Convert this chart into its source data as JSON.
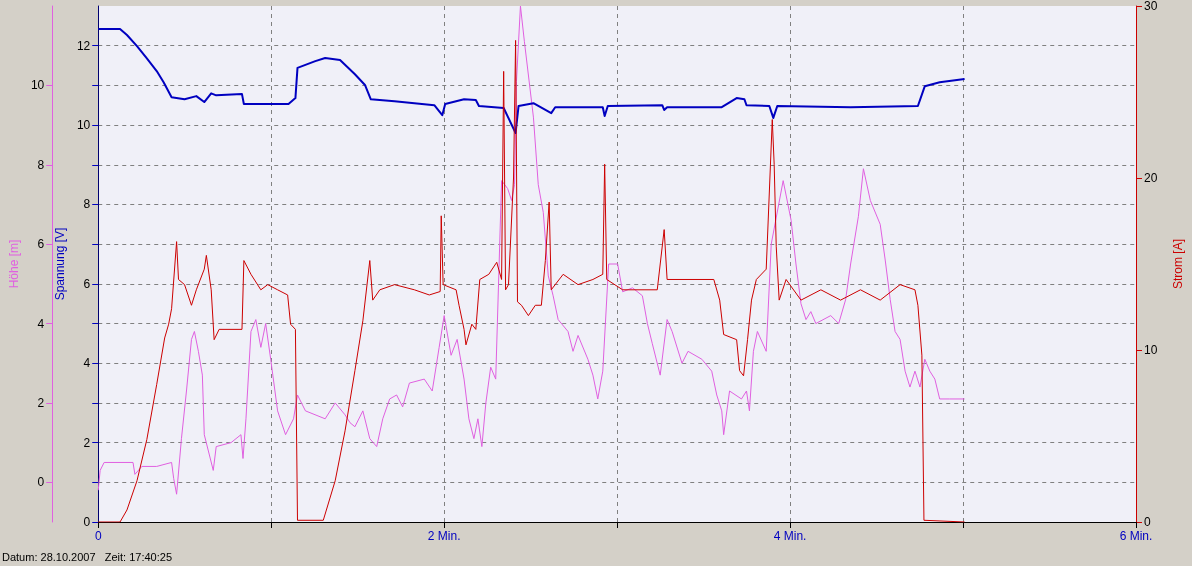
{
  "chart_data": {
    "type": "line",
    "xticks": [
      0,
      {
        "value": 1,
        "label": null
      },
      {
        "value": 2,
        "label": "2 Min."
      },
      {
        "value": 3,
        "label": null
      },
      {
        "value": 4,
        "label": "4 Min."
      },
      {
        "value": 5,
        "label": null
      },
      {
        "value": 6,
        "label": "6 Min."
      }
    ],
    "xlim": [
      0,
      6
    ],
    "ylabel": "Spannung [V]",
    "ylim": [
      0,
      13
    ],
    "yticks": [
      0,
      {
        "value": 1,
        "label": null
      },
      2,
      {
        "value": 3,
        "label": null
      },
      4,
      {
        "value": 5,
        "label": null
      },
      6,
      {
        "value": 7,
        "label": null
      },
      8,
      {
        "value": 9,
        "label": null
      },
      10,
      {
        "value": 11,
        "label": null
      },
      12
    ],
    "y2label": "Strom [A]",
    "y2lim": [
      0,
      30
    ],
    "y2ticks": [
      0,
      10,
      20,
      30
    ],
    "y3label": "Höhe [m]",
    "y3lim": [
      -1,
      12
    ],
    "y3ticks": [
      0,
      2,
      4,
      6,
      8,
      10
    ],
    "grid": true,
    "annotations": [
      "Datum: 28.10.2007   Zeit: 17:40:25"
    ],
    "series": [
      {
        "color": "#e060e0",
        "axis": "y3",
        "x": [
          0,
          0.011,
          0.034,
          0.201,
          0.212,
          0.252,
          0.338,
          0.424,
          0.436,
          0.453,
          0.481,
          0.51,
          0.539,
          0.556,
          0.579,
          0.602,
          0.613,
          0.665,
          0.682,
          0.768,
          0.825,
          0.837,
          0.854,
          0.883,
          0.911,
          0.94,
          0.968,
          0.997,
          1.037,
          1.083,
          1.129,
          1.152,
          1.198,
          1.312,
          1.37,
          1.427,
          1.456,
          1.484,
          1.53,
          1.57,
          1.61,
          1.645,
          1.685,
          1.725,
          1.76,
          1.799,
          1.885,
          1.931,
          1.971,
          2.0,
          2.04,
          2.075,
          2.115,
          2.143,
          2.172,
          2.195,
          2.218,
          2.241,
          2.269,
          2.298,
          2.332,
          2.367,
          2.39,
          2.407,
          2.418,
          2.441,
          2.464,
          2.516,
          2.544,
          2.573,
          2.602,
          2.63,
          2.659,
          2.716,
          2.745,
          2.774,
          2.831,
          2.86,
          2.888,
          2.917,
          2.951,
          3.003,
          3.032,
          3.089,
          3.146,
          3.175,
          3.203,
          3.249,
          3.289,
          3.318,
          3.375,
          3.41,
          3.49,
          3.547,
          3.576,
          3.605,
          3.616,
          3.65,
          3.719,
          3.748,
          3.765,
          3.788,
          3.811,
          3.862,
          3.891,
          3.96,
          4.006,
          4.034,
          4.063,
          4.092,
          4.12,
          4.149,
          4.235,
          4.281,
          4.321,
          4.35,
          4.395,
          4.424,
          4.464,
          4.521,
          4.55,
          4.579,
          4.607,
          4.636,
          4.665,
          4.693,
          4.722,
          4.751,
          4.779,
          4.808,
          4.837,
          4.865,
          4.923,
          5.009
        ],
        "values": [
          -0.2,
          0.3,
          0.5,
          0.5,
          0.2,
          0.4,
          0.4,
          0.5,
          0.1,
          -0.3,
          1.1,
          2.3,
          3.6,
          3.8,
          3.3,
          2.7,
          1.2,
          0.3,
          0.9,
          1.0,
          1.2,
          0.6,
          1.6,
          3.8,
          4.1,
          3.4,
          4.0,
          3.1,
          1.8,
          1.2,
          1.6,
          2.2,
          1.8,
          1.6,
          2.0,
          1.7,
          1.5,
          1.4,
          1.8,
          1.1,
          0.9,
          1.6,
          2.1,
          2.2,
          1.9,
          2.5,
          2.6,
          2.3,
          3.4,
          4.2,
          3.2,
          3.6,
          2.6,
          1.6,
          1.1,
          1.6,
          0.9,
          2.0,
          2.9,
          2.6,
          7.6,
          7.4,
          7.1,
          7.5,
          10.1,
          12.0,
          11.1,
          9.2,
          7.5,
          6.8,
          5.2,
          4.7,
          4.1,
          3.8,
          3.3,
          3.7,
          3.1,
          2.7,
          2.1,
          2.8,
          5.5,
          5.5,
          4.8,
          4.9,
          4.7,
          4.0,
          3.5,
          2.7,
          4.1,
          3.8,
          3.0,
          3.3,
          3.1,
          2.8,
          2.2,
          1.8,
          1.2,
          2.3,
          2.1,
          2.3,
          1.8,
          3.3,
          3.8,
          3.3,
          6.0,
          7.6,
          6.6,
          5.5,
          4.5,
          4.1,
          4.3,
          4.0,
          4.2,
          4.0,
          4.6,
          5.5,
          6.7,
          7.9,
          7.1,
          6.5,
          5.6,
          4.6,
          3.8,
          3.6,
          2.8,
          2.4,
          2.8,
          2.4,
          3.1,
          2.8,
          2.6,
          2.1,
          2.1,
          2.1
        ]
      },
      {
        "color": "#0000c0",
        "axis": "y",
        "x": [
          0,
          0.126,
          0.166,
          0.224,
          0.281,
          0.338,
          0.378,
          0.424,
          0.499,
          0.567,
          0.613,
          0.653,
          0.682,
          0.831,
          0.842,
          1.003,
          1.1,
          1.14,
          1.152,
          1.255,
          1.312,
          1.398,
          1.484,
          1.542,
          1.576,
          1.713,
          1.943,
          1.989,
          2.006,
          2.115,
          2.183,
          2.201,
          2.344,
          2.413,
          2.43,
          2.516,
          2.619,
          2.642,
          2.917,
          2.928,
          2.946,
          3.261,
          3.272,
          3.289,
          3.605,
          3.691,
          3.736,
          3.748,
          3.88,
          3.903,
          3.926,
          4.35,
          4.739,
          4.779,
          4.865,
          5.009
        ],
        "values": [
          12.42,
          12.42,
          12.27,
          11.99,
          11.68,
          11.36,
          11.08,
          10.7,
          10.65,
          10.73,
          10.58,
          10.8,
          10.75,
          10.78,
          10.53,
          10.53,
          10.53,
          10.68,
          11.44,
          11.61,
          11.69,
          11.64,
          11.28,
          11.01,
          10.65,
          10.6,
          10.5,
          10.25,
          10.53,
          10.65,
          10.63,
          10.48,
          10.43,
          9.8,
          10.48,
          10.55,
          10.3,
          10.45,
          10.45,
          10.23,
          10.48,
          10.5,
          10.38,
          10.45,
          10.45,
          10.68,
          10.65,
          10.5,
          10.48,
          10.18,
          10.48,
          10.45,
          10.48,
          10.98,
          11.08,
          11.16
        ]
      },
      {
        "color": "#cc0000",
        "axis": "y2",
        "x": [
          0,
          0.126,
          0.166,
          0.224,
          0.281,
          0.338,
          0.384,
          0.407,
          0.424,
          0.453,
          0.464,
          0.499,
          0.539,
          0.567,
          0.613,
          0.625,
          0.653,
          0.67,
          0.699,
          0.831,
          0.842,
          0.883,
          0.94,
          0.98,
          1.037,
          1.095,
          1.112,
          1.14,
          1.152,
          1.301,
          1.37,
          1.427,
          1.484,
          1.53,
          1.57,
          1.587,
          1.628,
          1.713,
          1.828,
          1.914,
          1.977,
          1.983,
          1.994,
          2.069,
          2.086,
          2.115,
          2.126,
          2.16,
          2.183,
          2.206,
          2.258,
          2.304,
          2.332,
          2.344,
          2.355,
          2.372,
          2.401,
          2.413,
          2.424,
          2.447,
          2.487,
          2.527,
          2.562,
          2.585,
          2.607,
          2.619,
          2.688,
          2.774,
          2.86,
          2.917,
          2.928,
          2.94,
          3.032,
          3.232,
          3.272,
          3.289,
          3.559,
          3.593,
          3.616,
          3.691,
          3.708,
          3.731,
          3.754,
          3.777,
          3.805,
          3.862,
          3.897,
          3.908,
          3.92,
          3.937,
          3.977,
          4.063,
          4.178,
          4.292,
          4.407,
          4.521,
          4.636,
          4.722,
          4.739,
          4.762,
          4.774,
          5.009
        ],
        "values": [
          0,
          0,
          0.7,
          2.4,
          4.8,
          8.0,
          10.7,
          11.5,
          12.4,
          16.3,
          14.1,
          13.8,
          12.6,
          13.5,
          14.7,
          15.5,
          13.5,
          10.6,
          11.2,
          11.2,
          15.2,
          14.4,
          13.5,
          13.8,
          13.5,
          13.2,
          11.5,
          11.2,
          0.1,
          0.1,
          2.4,
          5.3,
          8.8,
          11.7,
          15.2,
          12.9,
          13.5,
          13.8,
          13.5,
          13.2,
          13.4,
          17.8,
          13.8,
          13.5,
          12.6,
          11.2,
          10.3,
          11.5,
          11.2,
          14.1,
          14.4,
          15.1,
          14.1,
          26.2,
          13.5,
          13.8,
          20.0,
          28.0,
          12.8,
          12.6,
          12.0,
          12.6,
          12.6,
          15.2,
          18.6,
          13.5,
          14.4,
          13.8,
          14.1,
          14.4,
          20.8,
          14.1,
          13.5,
          13.5,
          17.0,
          14.1,
          14.1,
          12.9,
          10.9,
          10.6,
          8.8,
          8.5,
          10.6,
          12.9,
          14.1,
          14.7,
          23.4,
          20.8,
          16.0,
          12.9,
          14.1,
          12.9,
          13.5,
          12.9,
          13.5,
          12.9,
          13.8,
          13.5,
          12.6,
          9.7,
          0.1,
          0
        ]
      }
    ]
  }
}
